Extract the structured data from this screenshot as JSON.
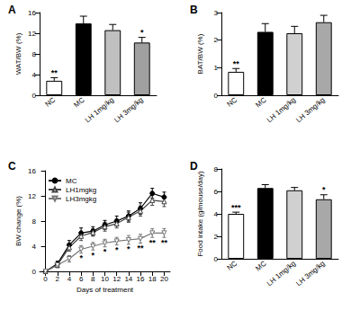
{
  "chart_data": [
    {
      "type": "bar",
      "title": "A",
      "ylabel": "WAT/BW (%)",
      "categories": [
        "NC",
        "MC",
        "LH 1mg/kg",
        "LH 3mg/kg"
      ],
      "values": [
        2.8,
        13.9,
        12.6,
        10.2
      ],
      "errors": [
        0.6,
        1.4,
        1.1,
        1.0
      ],
      "annotations": [
        "**",
        null,
        null,
        "*"
      ],
      "colors": [
        "#ffffff",
        "#000000",
        "#c0c0c0",
        "#a0a0a0"
      ],
      "ylim": [
        0,
        16
      ],
      "yticks": [
        0,
        4,
        8,
        12,
        16
      ],
      "grid": false
    },
    {
      "type": "bar",
      "title": "B",
      "ylabel": "BAT/BW (%)",
      "categories": [
        "NC",
        "MC",
        "LH 1mg/kg",
        "LH 3mg/kg"
      ],
      "values": [
        0.85,
        2.3,
        2.25,
        2.65
      ],
      "errors": [
        0.12,
        0.3,
        0.25,
        0.25
      ],
      "annotations": [
        "**",
        null,
        null,
        null
      ],
      "colors": [
        "#ffffff",
        "#000000",
        "#d0d0d0",
        "#a8a8a8"
      ],
      "ylim": [
        0,
        3
      ],
      "yticks": [
        0,
        1,
        2,
        3
      ],
      "grid": false
    },
    {
      "type": "line",
      "title": "C",
      "xlabel": "Days of treatment",
      "ylabel": "BW change (%)",
      "x": [
        0,
        2,
        4,
        6,
        8,
        10,
        12,
        14,
        16,
        18,
        20
      ],
      "series": [
        {
          "name": "MC",
          "color": "#000000",
          "marker": "circle",
          "values": [
            0,
            1.2,
            4.2,
            6.1,
            6.4,
            7.4,
            8.0,
            8.8,
            10.0,
            12.4,
            11.8
          ],
          "errors": [
            0,
            0.4,
            0.7,
            0.8,
            0.7,
            0.7,
            0.8,
            0.8,
            0.9,
            0.8,
            0.8
          ]
        },
        {
          "name": "LH1mgkg",
          "color": "#444444",
          "marker": "open_triangle",
          "values": [
            0,
            1.0,
            3.8,
            5.6,
            6.2,
            7.1,
            7.6,
            8.6,
            9.6,
            11.3,
            11.1
          ],
          "errors": [
            0,
            0.4,
            0.6,
            0.7,
            0.6,
            0.7,
            0.7,
            0.8,
            0.8,
            0.8,
            0.8
          ]
        },
        {
          "name": "LH3mgkg",
          "color": "#777777",
          "marker": "open_triangle_down",
          "values": [
            0,
            1.0,
            2.0,
            3.5,
            4.0,
            4.5,
            4.8,
            5.0,
            5.2,
            6.1,
            6.1
          ],
          "errors": [
            0,
            0.4,
            0.5,
            0.6,
            0.6,
            0.6,
            0.6,
            0.7,
            0.7,
            0.7,
            0.7
          ],
          "annotations": [
            null,
            null,
            null,
            "*",
            "*",
            "*",
            "*",
            "*",
            "**",
            "**",
            "**"
          ]
        }
      ],
      "xlim": [
        -1,
        21
      ],
      "xticks": [
        0,
        2,
        4,
        6,
        8,
        10,
        12,
        14,
        16,
        18,
        20
      ],
      "ylim": [
        0,
        16
      ],
      "yticks": [
        0,
        4,
        8,
        12,
        16
      ],
      "legend": "upper left",
      "grid": false
    },
    {
      "type": "bar",
      "title": "D",
      "ylabel": "Food intake (g/mouse/day)",
      "categories": [
        "NC",
        "MC",
        "LH 1mg/kg",
        "LH 3mg/kg"
      ],
      "values": [
        4.0,
        6.3,
        6.1,
        5.3
      ],
      "errors": [
        0.15,
        0.3,
        0.25,
        0.4
      ],
      "annotations": [
        "***",
        null,
        null,
        "*"
      ],
      "colors": [
        "#ffffff",
        "#000000",
        "#d0d0d0",
        "#a8a8a8"
      ],
      "ylim": [
        0,
        8
      ],
      "yticks": [
        0,
        2,
        4,
        6,
        8
      ],
      "grid": false
    }
  ]
}
